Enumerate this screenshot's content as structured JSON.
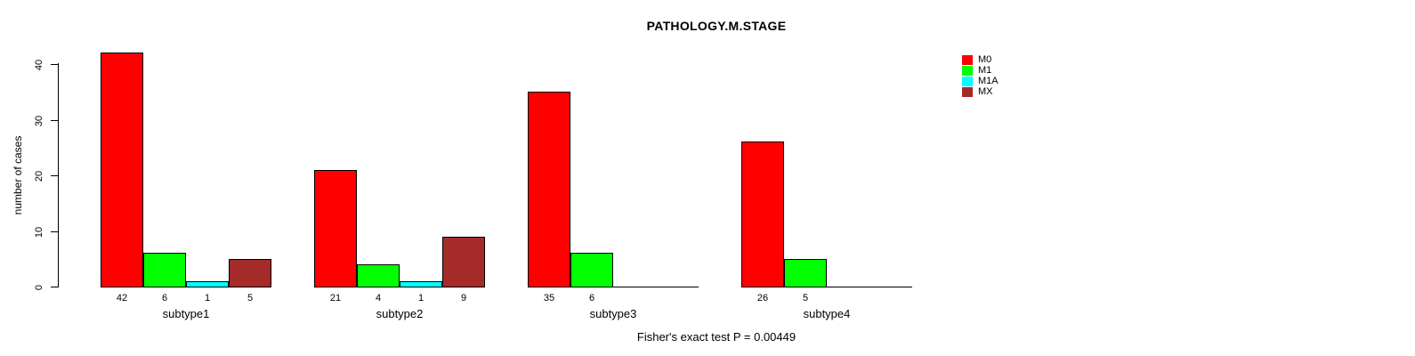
{
  "chart_data": {
    "type": "bar",
    "title": "PATHOLOGY.M.STAGE",
    "ylabel": "number of cases",
    "xlabel": "",
    "ylim": [
      0,
      40
    ],
    "y_ticks": [
      "0",
      "10",
      "20",
      "30",
      "40"
    ],
    "grid": "off",
    "legend_position": "top-right-outside",
    "categories": [
      "subtype1",
      "subtype2",
      "subtype3",
      "subtype4"
    ],
    "series": [
      {
        "name": "M0",
        "color": "#FF0000",
        "values": [
          42,
          21,
          35,
          26
        ]
      },
      {
        "name": "M1",
        "color": "#00FF00",
        "values": [
          6,
          4,
          6,
          5
        ]
      },
      {
        "name": "M1A",
        "color": "#00FFFF",
        "values": [
          1,
          1,
          0,
          0
        ]
      },
      {
        "name": "MX",
        "color": "#A52A2A",
        "values": [
          5,
          9,
          0,
          0
        ]
      }
    ],
    "bar_value_labels": {
      "subtype1": [
        "42",
        "6",
        "1",
        "5"
      ],
      "subtype2": [
        "21",
        "4",
        "1",
        "9"
      ],
      "subtype3": [
        "35",
        "6"
      ],
      "subtype4": [
        "26",
        "5"
      ]
    },
    "annotation": "Fisher's exact test P = 0.00449"
  },
  "legend": {
    "items": [
      {
        "label": "M0",
        "color": "#FF0000"
      },
      {
        "label": "M1",
        "color": "#00FF00"
      },
      {
        "label": "M1A",
        "color": "#00FFFF"
      },
      {
        "label": "MX",
        "color": "#A52A2A"
      }
    ]
  }
}
